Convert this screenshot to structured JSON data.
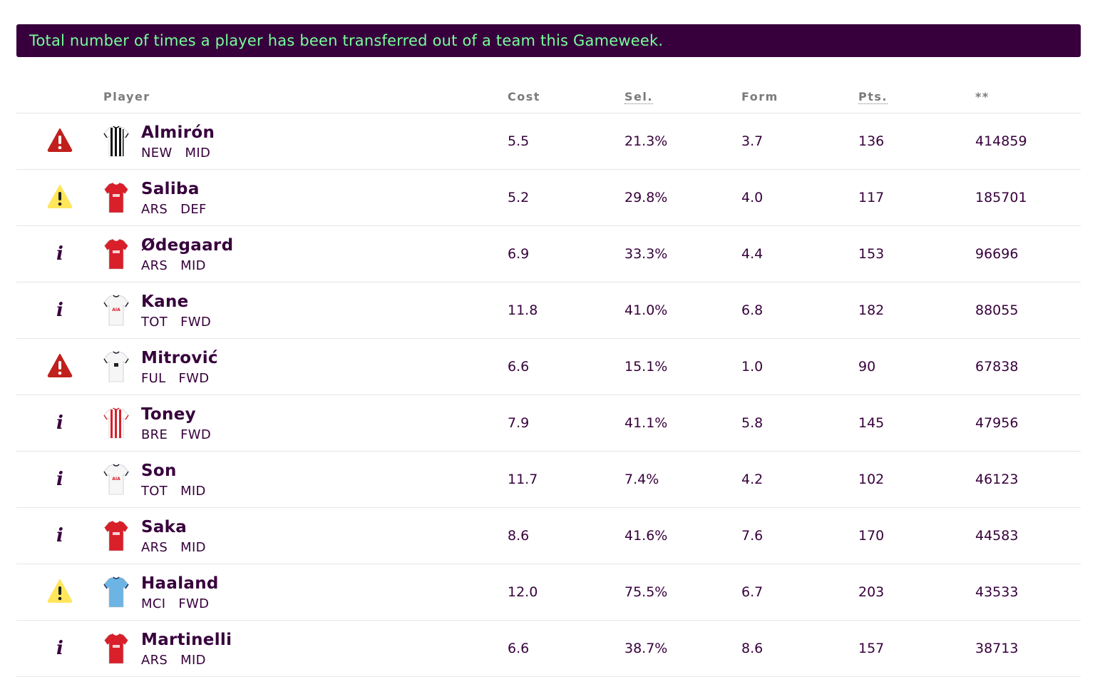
{
  "banner": {
    "text": "Total number of times a player has been transferred out of a team this Gameweek."
  },
  "columns": {
    "player": "Player",
    "cost": "Cost",
    "sel": "Sel.",
    "form": "Form",
    "pts": "Pts.",
    "transfers": "**"
  },
  "status_colors": {
    "danger": "#c0201c",
    "warning": "#ffe65b",
    "info": "#37003c"
  },
  "players": [
    {
      "status": "danger",
      "status_icon": "alert-triangle-red-icon",
      "shirt": "stripes-bw",
      "name": "Almirón",
      "team": "NEW",
      "pos": "MID",
      "cost": "5.5",
      "sel": "21.3%",
      "form": "3.7",
      "pts": "136",
      "transfers": "414859"
    },
    {
      "status": "warning",
      "status_icon": "alert-triangle-yellow-icon",
      "shirt": "red",
      "name": "Saliba",
      "team": "ARS",
      "pos": "DEF",
      "cost": "5.2",
      "sel": "29.8%",
      "form": "4.0",
      "pts": "117",
      "transfers": "185701"
    },
    {
      "status": "info",
      "status_icon": "info-icon",
      "shirt": "red",
      "name": "Ødegaard",
      "team": "ARS",
      "pos": "MID",
      "cost": "6.9",
      "sel": "33.3%",
      "form": "4.4",
      "pts": "153",
      "transfers": "96696"
    },
    {
      "status": "info",
      "status_icon": "info-icon",
      "shirt": "white-aia",
      "name": "Kane",
      "team": "TOT",
      "pos": "FWD",
      "cost": "11.8",
      "sel": "41.0%",
      "form": "6.8",
      "pts": "182",
      "transfers": "88055"
    },
    {
      "status": "danger",
      "status_icon": "alert-triangle-red-icon",
      "shirt": "white-black",
      "name": "Mitrović",
      "team": "FUL",
      "pos": "FWD",
      "cost": "6.6",
      "sel": "15.1%",
      "form": "1.0",
      "pts": "90",
      "transfers": "67838"
    },
    {
      "status": "info",
      "status_icon": "info-icon",
      "shirt": "stripes-rw",
      "name": "Toney",
      "team": "BRE",
      "pos": "FWD",
      "cost": "7.9",
      "sel": "41.1%",
      "form": "5.8",
      "pts": "145",
      "transfers": "47956"
    },
    {
      "status": "info",
      "status_icon": "info-icon",
      "shirt": "white-aia",
      "name": "Son",
      "team": "TOT",
      "pos": "MID",
      "cost": "11.7",
      "sel": "7.4%",
      "form": "4.2",
      "pts": "102",
      "transfers": "46123"
    },
    {
      "status": "info",
      "status_icon": "info-icon",
      "shirt": "red",
      "name": "Saka",
      "team": "ARS",
      "pos": "MID",
      "cost": "8.6",
      "sel": "41.6%",
      "form": "7.6",
      "pts": "170",
      "transfers": "44583"
    },
    {
      "status": "warning",
      "status_icon": "alert-triangle-yellow-icon",
      "shirt": "sky",
      "name": "Haaland",
      "team": "MCI",
      "pos": "FWD",
      "cost": "12.0",
      "sel": "75.5%",
      "form": "6.7",
      "pts": "203",
      "transfers": "43533"
    },
    {
      "status": "info",
      "status_icon": "info-icon",
      "shirt": "red",
      "name": "Martinelli",
      "team": "ARS",
      "pos": "MID",
      "cost": "6.6",
      "sel": "38.7%",
      "form": "8.6",
      "pts": "157",
      "transfers": "38713"
    }
  ]
}
